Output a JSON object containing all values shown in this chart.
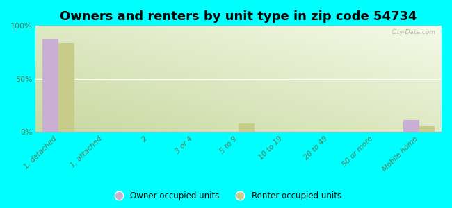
{
  "title": "Owners and renters by unit type in zip code 54734",
  "categories": [
    "1, detached",
    "1, attached",
    "2",
    "3 or 4",
    "5 to 9",
    "10 to 19",
    "20 to 49",
    "50 or more",
    "Mobile home"
  ],
  "owner_values": [
    88,
    0,
    0,
    0,
    0,
    0,
    0,
    0,
    11
  ],
  "renter_values": [
    84,
    0,
    0,
    0,
    8,
    0,
    0,
    0,
    5
  ],
  "owner_color": "#c9afd4",
  "renter_color": "#c8cc8a",
  "background_color": "#00ffff",
  "plot_bg_topleft": "#c8d8a0",
  "plot_bg_bottomright": "#f5fae8",
  "ylabel_ticks": [
    "0%",
    "50%",
    "100%"
  ],
  "ytick_vals": [
    0,
    50,
    100
  ],
  "bar_width": 0.35,
  "title_fontsize": 13,
  "watermark": "City-Data.com"
}
